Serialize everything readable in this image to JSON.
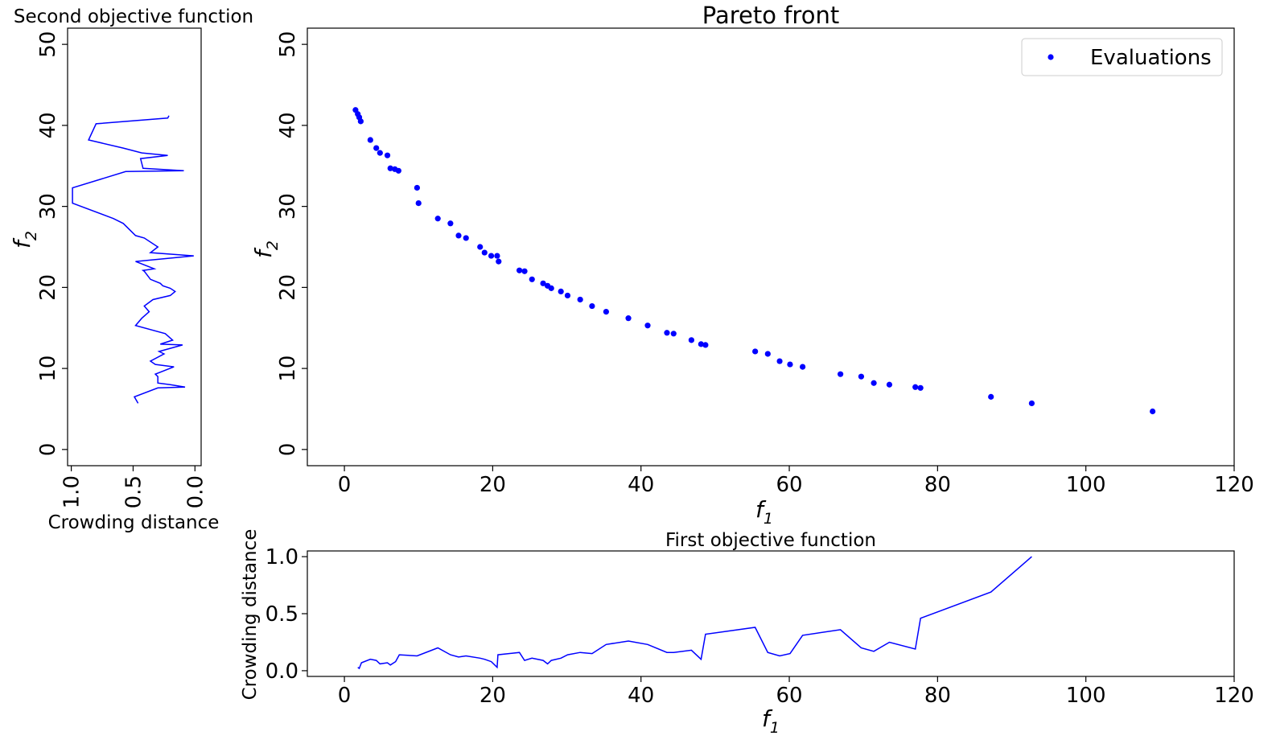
{
  "chart_data": [
    {
      "id": "main",
      "type": "scatter",
      "title": "Pareto front",
      "xlabel": "f1",
      "ylabel": "f2",
      "xlim": [
        -5,
        120
      ],
      "ylim": [
        -2,
        52
      ],
      "xticks": [
        "0",
        "20",
        "40",
        "60",
        "80",
        "100",
        "120"
      ],
      "yticks": [
        "0",
        "10",
        "20",
        "30",
        "40",
        "50"
      ],
      "legend": "top-right",
      "grid": false,
      "series": [
        {
          "name": "Evaluations",
          "color": "#0000ff",
          "points": [
            [
              1.5,
              41.9
            ],
            [
              1.8,
              41.4
            ],
            [
              2.0,
              41.0
            ],
            [
              2.2,
              40.5
            ],
            [
              3.5,
              38.2
            ],
            [
              4.3,
              37.2
            ],
            [
              4.8,
              36.6
            ],
            [
              5.8,
              36.3
            ],
            [
              6.2,
              34.7
            ],
            [
              6.8,
              34.6
            ],
            [
              7.3,
              34.4
            ],
            [
              9.8,
              32.3
            ],
            [
              10.0,
              30.4
            ],
            [
              12.6,
              28.5
            ],
            [
              14.3,
              27.9
            ],
            [
              15.4,
              26.4
            ],
            [
              16.4,
              26.1
            ],
            [
              18.3,
              25.0
            ],
            [
              18.9,
              24.3
            ],
            [
              19.8,
              23.9
            ],
            [
              20.6,
              23.9
            ],
            [
              20.8,
              23.2
            ],
            [
              23.6,
              22.1
            ],
            [
              24.3,
              22.0
            ],
            [
              25.3,
              21.0
            ],
            [
              26.8,
              20.5
            ],
            [
              27.4,
              20.2
            ],
            [
              27.9,
              19.9
            ],
            [
              29.2,
              19.5
            ],
            [
              30.1,
              19.0
            ],
            [
              31.8,
              18.5
            ],
            [
              33.4,
              17.7
            ],
            [
              35.3,
              17.0
            ],
            [
              38.3,
              16.2
            ],
            [
              40.9,
              15.3
            ],
            [
              43.5,
              14.4
            ],
            [
              44.4,
              14.3
            ],
            [
              46.8,
              13.5
            ],
            [
              48.1,
              13.0
            ],
            [
              48.7,
              12.9
            ],
            [
              55.4,
              12.1
            ],
            [
              57.1,
              11.8
            ],
            [
              58.7,
              10.9
            ],
            [
              60.1,
              10.5
            ],
            [
              61.8,
              10.2
            ],
            [
              66.9,
              9.3
            ],
            [
              69.7,
              9.0
            ],
            [
              71.4,
              8.2
            ],
            [
              73.5,
              8.0
            ],
            [
              77.0,
              7.7
            ],
            [
              77.7,
              7.6
            ],
            [
              87.2,
              6.5
            ],
            [
              92.7,
              5.7
            ],
            [
              109.0,
              4.7
            ]
          ]
        }
      ]
    },
    {
      "id": "left",
      "type": "line",
      "title": "Second objective function",
      "xlabel": "Crowding distance",
      "ylabel": "f2",
      "xlim": [
        1.03,
        -0.05
      ],
      "ylim": [
        -2,
        52
      ],
      "xticks": [
        "1.0",
        "0.5",
        "0.0"
      ],
      "yticks": [
        "0",
        "10",
        "20",
        "30",
        "40",
        "50"
      ],
      "series": [
        {
          "color": "#0000ff",
          "points": [
            [
              0.46,
              5.7
            ],
            [
              0.49,
              6.5
            ],
            [
              0.3,
              7.6
            ],
            [
              0.08,
              7.7
            ],
            [
              0.2,
              8.0
            ],
            [
              0.3,
              8.2
            ],
            [
              0.3,
              9.0
            ],
            [
              0.32,
              9.3
            ],
            [
              0.17,
              10.2
            ],
            [
              0.32,
              10.5
            ],
            [
              0.36,
              10.9
            ],
            [
              0.25,
              11.8
            ],
            [
              0.29,
              12.1
            ],
            [
              0.1,
              12.9
            ],
            [
              0.28,
              13.0
            ],
            [
              0.18,
              13.5
            ],
            [
              0.24,
              14.3
            ],
            [
              0.48,
              15.3
            ],
            [
              0.43,
              16.2
            ],
            [
              0.37,
              17.0
            ],
            [
              0.41,
              17.7
            ],
            [
              0.34,
              18.5
            ],
            [
              0.2,
              19.0
            ],
            [
              0.16,
              19.5
            ],
            [
              0.2,
              19.9
            ],
            [
              0.26,
              20.2
            ],
            [
              0.28,
              20.5
            ],
            [
              0.36,
              21.0
            ],
            [
              0.41,
              22.0
            ],
            [
              0.42,
              22.1
            ],
            [
              0.33,
              22.3
            ],
            [
              0.48,
              23.2
            ],
            [
              0.01,
              23.9
            ],
            [
              0.36,
              24.3
            ],
            [
              0.3,
              25.0
            ],
            [
              0.41,
              26.1
            ],
            [
              0.48,
              26.4
            ],
            [
              0.58,
              27.9
            ],
            [
              0.66,
              28.5
            ],
            [
              0.99,
              30.4
            ],
            [
              0.99,
              32.3
            ],
            [
              0.56,
              34.3
            ],
            [
              0.09,
              34.4
            ],
            [
              0.42,
              34.7
            ],
            [
              0.44,
              35.9
            ],
            [
              0.22,
              36.3
            ],
            [
              0.43,
              36.6
            ],
            [
              0.58,
              37.2
            ],
            [
              0.86,
              38.2
            ],
            [
              0.8,
              40.2
            ],
            [
              0.22,
              40.9
            ],
            [
              0.21,
              41.2
            ]
          ]
        }
      ]
    },
    {
      "id": "bottom",
      "type": "line",
      "title": "First objective function",
      "xlabel": "f1",
      "ylabel": "Crowding distance",
      "xlim": [
        -5,
        120
      ],
      "ylim": [
        -0.05,
        1.05
      ],
      "xticks": [
        "0",
        "20",
        "40",
        "60",
        "80",
        "100",
        "120"
      ],
      "yticks": [
        "0.0",
        "0.5",
        "1.0"
      ],
      "series": [
        {
          "color": "#0000ff",
          "points": [
            [
              1.8,
              0.03
            ],
            [
              2.0,
              0.02
            ],
            [
              2.3,
              0.07
            ],
            [
              3.5,
              0.1
            ],
            [
              4.3,
              0.09
            ],
            [
              4.8,
              0.06
            ],
            [
              5.8,
              0.07
            ],
            [
              6.2,
              0.05
            ],
            [
              6.9,
              0.08
            ],
            [
              7.4,
              0.14
            ],
            [
              9.8,
              0.13
            ],
            [
              12.6,
              0.2
            ],
            [
              14.3,
              0.14
            ],
            [
              15.4,
              0.12
            ],
            [
              16.4,
              0.13
            ],
            [
              18.3,
              0.11
            ],
            [
              18.9,
              0.1
            ],
            [
              19.8,
              0.08
            ],
            [
              20.6,
              0.03
            ],
            [
              20.7,
              0.14
            ],
            [
              23.6,
              0.16
            ],
            [
              24.3,
              0.09
            ],
            [
              25.3,
              0.11
            ],
            [
              26.8,
              0.09
            ],
            [
              27.4,
              0.06
            ],
            [
              27.9,
              0.09
            ],
            [
              29.2,
              0.11
            ],
            [
              30.1,
              0.14
            ],
            [
              31.8,
              0.16
            ],
            [
              33.4,
              0.15
            ],
            [
              35.3,
              0.23
            ],
            [
              38.3,
              0.26
            ],
            [
              40.9,
              0.23
            ],
            [
              43.5,
              0.16
            ],
            [
              44.4,
              0.16
            ],
            [
              46.8,
              0.18
            ],
            [
              48.1,
              0.1
            ],
            [
              48.7,
              0.32
            ],
            [
              55.4,
              0.38
            ],
            [
              57.1,
              0.16
            ],
            [
              58.7,
              0.13
            ],
            [
              60.1,
              0.15
            ],
            [
              61.8,
              0.31
            ],
            [
              66.9,
              0.36
            ],
            [
              69.7,
              0.2
            ],
            [
              71.4,
              0.17
            ],
            [
              73.5,
              0.25
            ],
            [
              77.0,
              0.19
            ],
            [
              77.7,
              0.46
            ],
            [
              87.2,
              0.69
            ],
            [
              92.7,
              1.0
            ]
          ]
        }
      ]
    }
  ]
}
